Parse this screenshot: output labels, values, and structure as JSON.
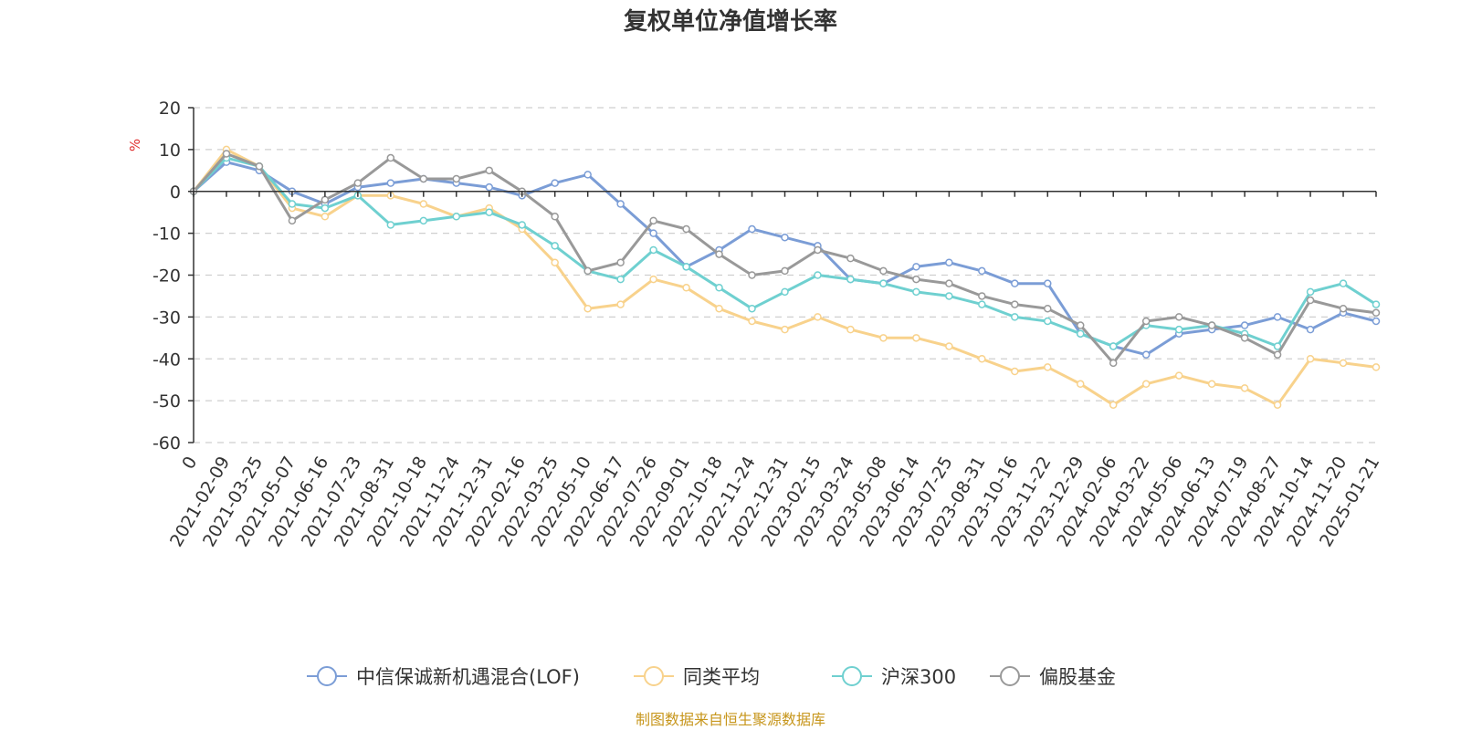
{
  "chart_data": {
    "type": "line",
    "title": "复权单位净值增长率",
    "ylabel": "%",
    "ylim": [
      -60,
      20
    ],
    "yticks": [
      20,
      10,
      0,
      -10,
      -20,
      -30,
      -40,
      -50,
      -60
    ],
    "grid": true,
    "legend_position": "bottom",
    "x_tick_labels": [
      "0",
      "2021-02-09",
      "2021-03-25",
      "2021-05-07",
      "2021-06-16",
      "2021-07-23",
      "2021-08-31",
      "2021-10-18",
      "2021-11-24",
      "2021-12-31",
      "2022-02-16",
      "2022-03-25",
      "2022-05-10",
      "2022-06-17",
      "2022-07-26",
      "2022-09-01",
      "2022-10-18",
      "2022-11-24",
      "2022-12-31",
      "2023-02-15",
      "2023-03-24",
      "2023-05-08",
      "2023-06-14",
      "2023-07-25",
      "2023-08-31",
      "2023-10-16",
      "2023-11-22",
      "2023-12-29",
      "2024-02-06",
      "2024-03-22",
      "2024-05-06",
      "2024-06-13",
      "2024-07-19",
      "2024-08-27",
      "2024-10-14",
      "2024-11-20",
      "2025-01-21"
    ],
    "series": [
      {
        "name": "中信保诚新机遇混合(LOF)",
        "color": "#7b9dd6",
        "values": [
          0,
          7,
          5,
          0,
          -3,
          1,
          2,
          3,
          2,
          1,
          -1,
          2,
          4,
          -3,
          -10,
          -18,
          -14,
          -9,
          -11,
          -13,
          -21,
          -22,
          -18,
          -17,
          -19,
          -22,
          -22,
          -34,
          -37,
          -39,
          -34,
          -33,
          -32,
          -30,
          -33,
          -29,
          -31
        ]
      },
      {
        "name": "同类平均",
        "color": "#f8d28c",
        "values": [
          0,
          10,
          6,
          -4,
          -6,
          -1,
          -1,
          -3,
          -6,
          -4,
          -9,
          -17,
          -28,
          -27,
          -21,
          -23,
          -28,
          -31,
          -33,
          -30,
          -33,
          -35,
          -35,
          -37,
          -40,
          -43,
          -42,
          -46,
          -51,
          -46,
          -44,
          -46,
          -47,
          -51,
          -40,
          -41,
          -42
        ]
      },
      {
        "name": "沪深300",
        "color": "#6fd0d0",
        "values": [
          0,
          8,
          6,
          -3,
          -4,
          -1,
          -8,
          -7,
          -6,
          -5,
          -8,
          -13,
          -19,
          -21,
          -14,
          -18,
          -23,
          -28,
          -24,
          -20,
          -21,
          -22,
          -24,
          -25,
          -27,
          -30,
          -31,
          -34,
          -37,
          -32,
          -33,
          -32,
          -34,
          -37,
          -24,
          -22,
          -27
        ]
      },
      {
        "name": "偏股基金",
        "color": "#999999",
        "values": [
          0,
          9,
          6,
          -7,
          -2,
          2,
          8,
          3,
          3,
          5,
          0,
          -6,
          -19,
          -17,
          -7,
          -9,
          -15,
          -20,
          -19,
          -14,
          -16,
          -19,
          -21,
          -22,
          -25,
          -27,
          -28,
          -32,
          -41,
          -31,
          -30,
          -32,
          -35,
          -39,
          -26,
          -28,
          -29
        ]
      }
    ]
  },
  "source_note": "制图数据来自恒生聚源数据库"
}
